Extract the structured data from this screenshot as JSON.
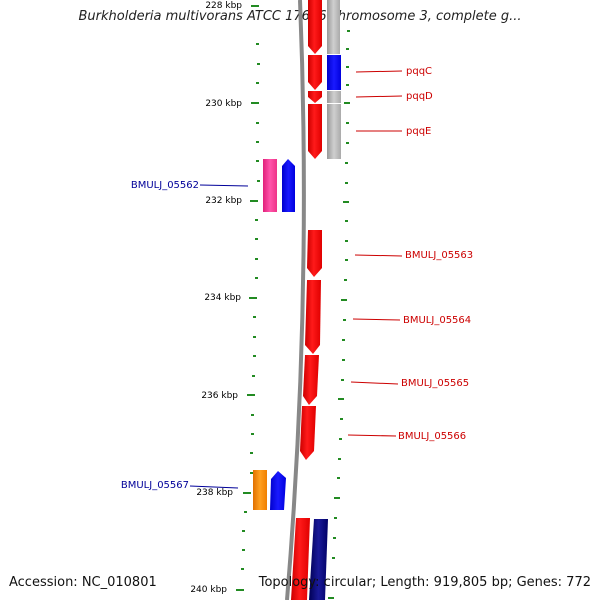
{
  "title": "Burkholderia multivorans ATCC 17616 chromosome 3, complete g...",
  "accession": "Accession: NC_010801",
  "summary": "Topology: circular; Length: 919,805 bp; Genes: 772",
  "ticks": [
    {
      "label": "228 kbp"
    },
    {
      "label": "230 kbp"
    },
    {
      "label": "232 kbp"
    },
    {
      "label": "234 kbp"
    },
    {
      "label": "236 kbp"
    },
    {
      "label": "238 kbp"
    },
    {
      "label": "240 kbp"
    }
  ],
  "genes": [
    {
      "label": "pqqC",
      "label_color": "#cc0000",
      "fill": "#ff0000"
    },
    {
      "label": "pqqD",
      "label_color": "#cc0000",
      "fill": "#ff0000"
    },
    {
      "label": "pqqE",
      "label_color": "#cc0000",
      "fill": "#ff0000"
    },
    {
      "label": "BMULJ_05562",
      "label_color": "#000099",
      "fill": "#ff3399"
    },
    {
      "label": "BMULJ_05563",
      "label_color": "#cc0000",
      "fill": "#ff0000"
    },
    {
      "label": "BMULJ_05564",
      "label_color": "#cc0000",
      "fill": "#ff0000"
    },
    {
      "label": "BMULJ_05565",
      "label_color": "#cc0000",
      "fill": "#ff0000"
    },
    {
      "label": "BMULJ_05566",
      "label_color": "#cc0000",
      "fill": "#ff0000"
    },
    {
      "label": "BMULJ_05567",
      "label_color": "#000099",
      "fill": "#ff8800"
    }
  ],
  "colors": {
    "backbone": "#888888",
    "tick_mark": "#228b22",
    "gray_track": "#bbbbbb",
    "blue_track": "#0000ff",
    "navy_track": "#000077"
  }
}
